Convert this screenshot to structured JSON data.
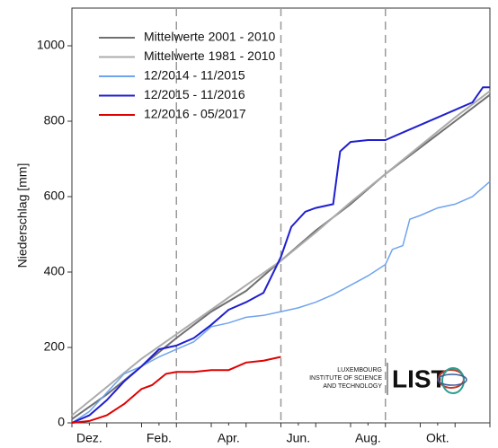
{
  "chart_data": {
    "type": "line",
    "ylabel": "Niederschlag [mm]",
    "xlim": [
      0,
      12
    ],
    "ylim": [
      0,
      1100
    ],
    "xticks": [
      {
        "value": 0.5,
        "label": "Dez."
      },
      {
        "value": 2.5,
        "label": "Feb."
      },
      {
        "value": 4.5,
        "label": "Apr."
      },
      {
        "value": 6.5,
        "label": "Jun."
      },
      {
        "value": 8.5,
        "label": "Aug."
      },
      {
        "value": 10.5,
        "label": "Okt."
      }
    ],
    "yticks": [
      0,
      200,
      400,
      600,
      800,
      1000
    ],
    "vlines": [
      3,
      6,
      9
    ],
    "legend": "upper left",
    "series": [
      {
        "name": "Mittelwerte 2001 - 2010",
        "color": "#707070",
        "x": [
          0,
          1,
          2,
          3,
          4,
          5,
          6,
          7,
          8,
          9,
          10,
          11,
          12
        ],
        "values": [
          10,
          75,
          150,
          225,
          295,
          350,
          430,
          510,
          580,
          660,
          730,
          800,
          870
        ]
      },
      {
        "name": "Mittelwerte 1981 - 2010",
        "color": "#ababab",
        "x": [
          0,
          1,
          2,
          3,
          4,
          5,
          6,
          7,
          8,
          9,
          10,
          11,
          12
        ],
        "values": [
          20,
          95,
          170,
          235,
          300,
          365,
          430,
          505,
          585,
          660,
          735,
          810,
          880
        ]
      },
      {
        "name": "12/2014 - 11/2015",
        "color": "#6fa4ee",
        "x": [
          0,
          0.5,
          1,
          1.5,
          2,
          2.5,
          3,
          3.5,
          4,
          4.5,
          5,
          5.5,
          6,
          6.5,
          7,
          7.5,
          8,
          8.5,
          9,
          9.2,
          9.5,
          9.7,
          10,
          10.5,
          11,
          11.5,
          12
        ],
        "values": [
          0,
          30,
          80,
          130,
          150,
          175,
          195,
          215,
          255,
          265,
          280,
          285,
          295,
          305,
          320,
          340,
          365,
          390,
          420,
          460,
          470,
          540,
          550,
          570,
          580,
          600,
          640
        ]
      },
      {
        "name": "12/2015 - 11/2016",
        "color": "#1f1fd0",
        "x": [
          0,
          0.5,
          1,
          1.5,
          2,
          2.5,
          3,
          3.5,
          4,
          4.5,
          5,
          5.5,
          6,
          6.3,
          6.7,
          7,
          7.5,
          7.7,
          8,
          8.5,
          9,
          9.5,
          10,
          10.5,
          11,
          11.5,
          11.8,
          12
        ],
        "values": [
          0,
          20,
          60,
          110,
          150,
          195,
          205,
          225,
          260,
          300,
          320,
          345,
          440,
          520,
          560,
          570,
          580,
          720,
          745,
          750,
          750,
          770,
          790,
          810,
          830,
          850,
          890,
          890
        ]
      },
      {
        "name": "12/2016 - 05/2017",
        "color": "#e00000",
        "x": [
          0,
          0.5,
          1,
          1.5,
          2,
          2.3,
          2.7,
          3,
          3.5,
          4,
          4.5,
          5,
          5.5,
          6
        ],
        "values": [
          0,
          5,
          20,
          50,
          90,
          100,
          130,
          135,
          135,
          140,
          140,
          160,
          165,
          175
        ]
      }
    ],
    "annotations": [
      "LUXEMBOURG",
      "INSTITUTE OF SCIENCE",
      "AND TECHNOLOGY",
      "LIST"
    ]
  }
}
